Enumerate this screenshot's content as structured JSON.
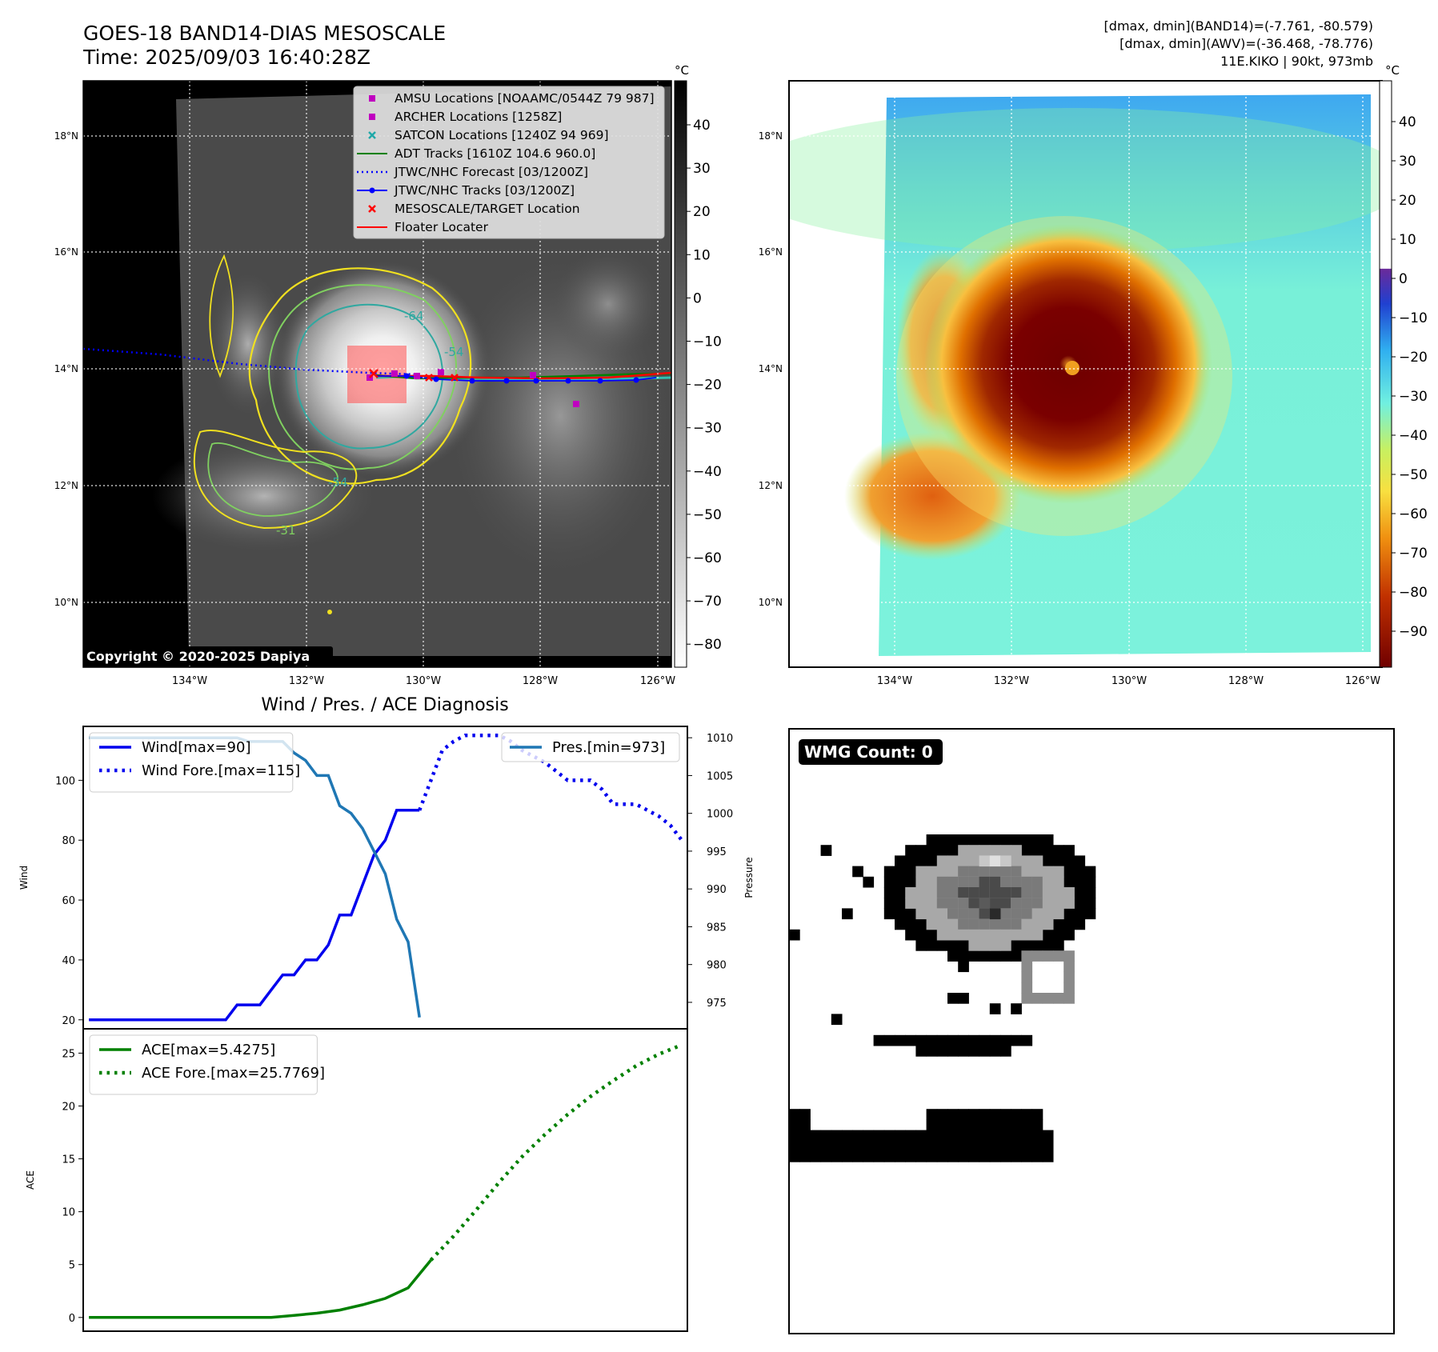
{
  "header": {
    "title_line1": "GOES-18 BAND14-DIAS MESOSCALE",
    "title_line2": "Time: 2025/09/03 16:40:28Z",
    "info_line1": "[dmax, dmin](BAND14)=(-7.761, -80.579)",
    "info_line2": "[dmax, dmin](AWV)=(-36.468, -78.776)",
    "info_line3": "11E.KIKO | 90kt, 973mb"
  },
  "ir_panel": {
    "lat_labels": [
      "18°N",
      "16°N",
      "14°N",
      "12°N",
      "10°N"
    ],
    "lon_labels": [
      "134°W",
      "132°W",
      "130°W",
      "128°W",
      "126°W"
    ],
    "copyright": "Copyright © 2020-2025 Dapiya",
    "contour_labels": [
      "-64",
      "-54",
      "-54",
      "-31"
    ],
    "legend": [
      {
        "label": "AMSU Locations [NOAAMC/0544Z 79 987]",
        "marker": "square",
        "color": "#c000c0"
      },
      {
        "label": "ARCHER Locations [1258Z]",
        "marker": "square",
        "color": "#c000c0"
      },
      {
        "label": "SATCON Locations [1240Z 94 969]",
        "marker": "x",
        "color": "#20a8a8"
      },
      {
        "label": "ADT Tracks [1610Z 104.6 960.0]",
        "marker": "line",
        "color": "#008000"
      },
      {
        "label": "JTWC/NHC Forecast [03/1200Z]",
        "marker": "dotted",
        "color": "#0000ff"
      },
      {
        "label": "JTWC/NHC Tracks [03/1200Z]",
        "marker": "line-dot",
        "color": "#0000ff"
      },
      {
        "label": "MESOSCALE/TARGET Location",
        "marker": "x",
        "color": "#ff0000"
      },
      {
        "label": "Floater Locater",
        "marker": "line",
        "color": "#ff0000"
      }
    ],
    "colorbar": {
      "unit": "°C",
      "ticks": [
        "40",
        "30",
        "20",
        "10",
        "0",
        "−10",
        "−20",
        "−30",
        "−40",
        "−50",
        "−60",
        "−70",
        "−80"
      ]
    }
  },
  "awv_panel": {
    "lat_labels": [
      "18°N",
      "16°N",
      "14°N",
      "12°N",
      "10°N"
    ],
    "lon_labels": [
      "134°W",
      "132°W",
      "130°W",
      "128°W",
      "126°W"
    ],
    "colorbar": {
      "unit": "°C",
      "ticks": [
        "40",
        "30",
        "20",
        "10",
        "0",
        "−10",
        "−20",
        "−30",
        "−40",
        "−50",
        "−60",
        "−70",
        "−80",
        "−90"
      ]
    }
  },
  "wmg_panel": {
    "badge": "WMG Count: 0"
  },
  "chart_data": [
    {
      "type": "line",
      "title": "Wind / Pres. / ACE Diagnosis",
      "ylabel": "Wind",
      "ylabel_right": "Pressure",
      "ylim": [
        17,
        118
      ],
      "ylim_right": [
        971.5,
        1011.5
      ],
      "xlim": [
        -0.5,
        52.5
      ],
      "yticks": [
        20,
        40,
        60,
        80,
        100
      ],
      "yticks_right": [
        975,
        980,
        985,
        990,
        995,
        1000,
        1005,
        1010
      ],
      "series": [
        {
          "name": "Wind[max=90]",
          "style": "solid",
          "color": "#0000ee",
          "x": [
            0,
            1,
            2,
            3,
            4,
            5,
            6,
            7,
            8,
            9,
            10,
            11,
            12,
            13,
            14,
            15,
            16,
            17,
            18,
            19,
            20,
            21,
            22,
            23,
            24,
            25,
            26,
            27,
            28,
            29
          ],
          "values": [
            20,
            20,
            20,
            20,
            20,
            20,
            20,
            20,
            20,
            20,
            20,
            20,
            20,
            25,
            25,
            25,
            30,
            35,
            35,
            40,
            40,
            45,
            55,
            55,
            65,
            75,
            80,
            90,
            90,
            90
          ]
        },
        {
          "name": "Wind Fore.[max=115]",
          "style": "dotted",
          "color": "#0000ee",
          "x": [
            29,
            30,
            31,
            32,
            33,
            34,
            35,
            36,
            37,
            38,
            39,
            40,
            41,
            42,
            43,
            44,
            45,
            46,
            47,
            48,
            49,
            50,
            51,
            52
          ],
          "values": [
            90,
            100,
            110,
            113,
            115,
            115,
            115,
            115,
            113,
            110,
            108,
            106,
            103,
            100,
            100,
            100,
            97,
            92,
            92,
            92,
            90,
            88,
            85,
            80
          ]
        },
        {
          "name": "Pres.[min=973]",
          "style": "solid",
          "color": "#1f77b4",
          "x": [
            0,
            1,
            2,
            3,
            4,
            5,
            6,
            7,
            8,
            9,
            10,
            11,
            12,
            13,
            14,
            15,
            16,
            17,
            18,
            19,
            20,
            21,
            22,
            23,
            24,
            25,
            26,
            27,
            28,
            29
          ],
          "values": [
            1010,
            1010,
            1010,
            1010,
            1010,
            1010,
            1010,
            1010,
            1010,
            1010,
            1010,
            1010,
            1010,
            1010,
            1009.5,
            1009.5,
            1009.5,
            1009.5,
            1008,
            1007,
            1005,
            1005,
            1001,
            1000,
            998,
            995,
            992,
            986,
            983,
            973
          ]
        }
      ],
      "legend": [
        "Wind[max=90]",
        "Wind Fore.[max=115]",
        "Pres.[min=973]"
      ]
    },
    {
      "type": "line",
      "ylabel": "ACE",
      "ylim": [
        -1.3,
        27.3
      ],
      "xlim": [
        -0.5,
        52.5
      ],
      "yticks": [
        0,
        5,
        10,
        15,
        20,
        25
      ],
      "series": [
        {
          "name": "ACE[max=5.4275]",
          "style": "solid",
          "color": "#008000",
          "x": [
            0,
            2,
            4,
            6,
            8,
            10,
            12,
            14,
            16,
            18,
            20,
            22,
            24,
            26,
            28,
            30
          ],
          "values": [
            0,
            0,
            0,
            0,
            0,
            0,
            0,
            0,
            0,
            0.2,
            0.4,
            0.7,
            1.2,
            1.8,
            2.8,
            5.4275
          ]
        },
        {
          "name": "ACE Fore.[max=25.7769]",
          "style": "dotted",
          "color": "#008000",
          "x": [
            30,
            32,
            34,
            36,
            38,
            40,
            42,
            44,
            46,
            48,
            50,
            52
          ],
          "values": [
            5.4275,
            7.7,
            10.2,
            12.8,
            15.2,
            17.3,
            19.2,
            20.9,
            22.4,
            23.8,
            24.9,
            25.7769
          ]
        }
      ],
      "legend": [
        "ACE[max=5.4275]",
        "ACE Fore.[max=25.7769]"
      ]
    }
  ]
}
